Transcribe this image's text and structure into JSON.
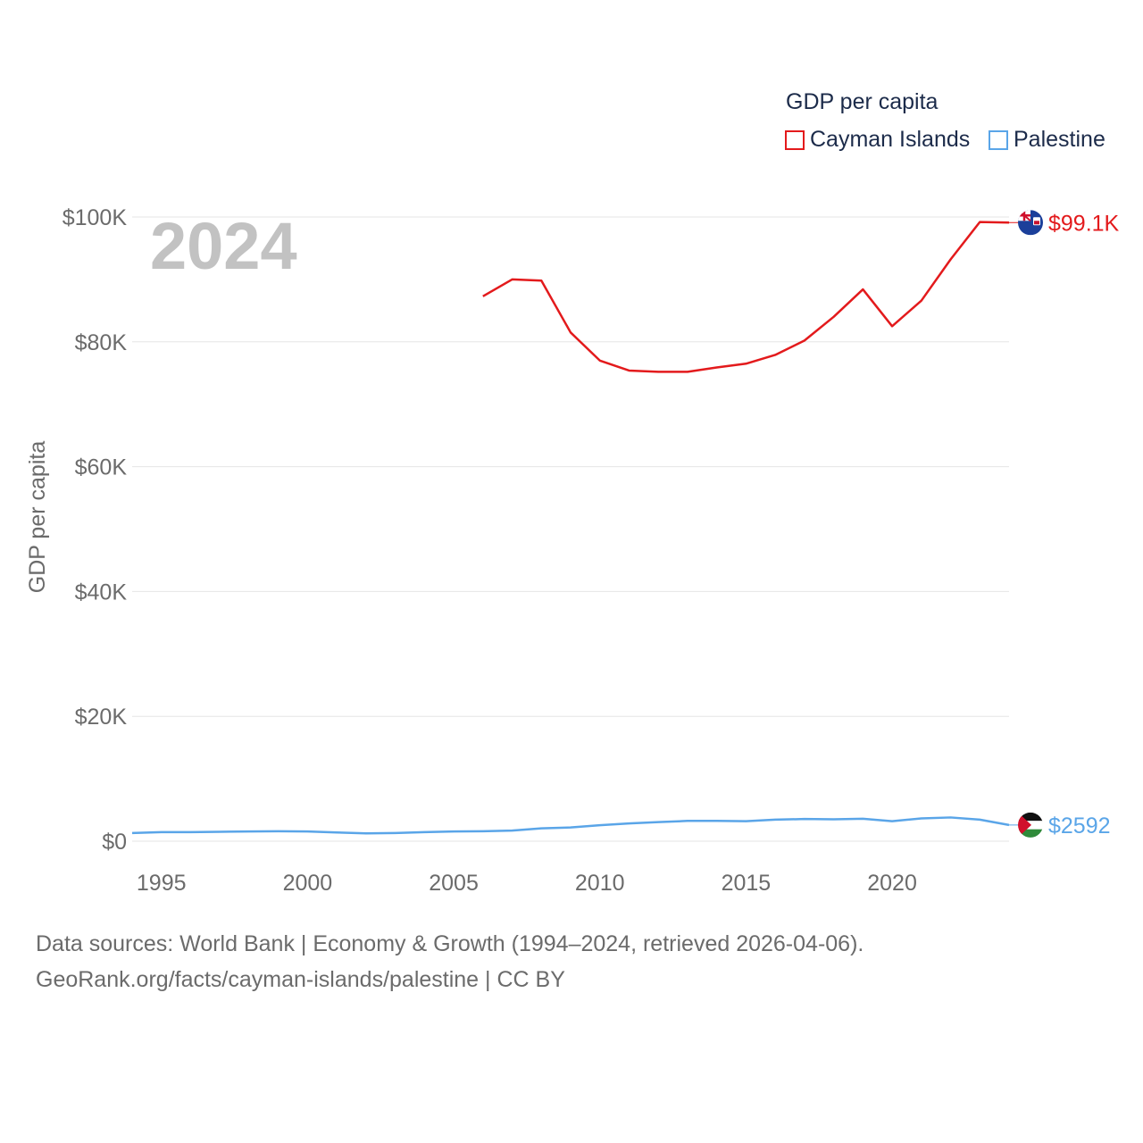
{
  "legend": {
    "title": "GDP per capita",
    "items": [
      {
        "label": "Cayman Islands",
        "color": "#e31a1c"
      },
      {
        "label": "Palestine",
        "color": "#5aa5e8"
      }
    ]
  },
  "current_year": "2024",
  "footer": {
    "line1": "Data sources: World Bank | Economy & Growth (1994–2024, retrieved 2026-04-06).",
    "line2": "GeoRank.org/facts/cayman-islands/palestine | CC BY"
  },
  "chart_data": {
    "type": "line",
    "title": "",
    "xlabel": "",
    "ylabel": "GDP per capita",
    "xlim": [
      1994,
      2024
    ],
    "ylim": [
      0,
      100000
    ],
    "y_ticks": [
      0,
      20000,
      40000,
      60000,
      80000,
      100000
    ],
    "y_tick_labels": [
      "$0",
      "$20K",
      "$40K",
      "$60K",
      "$80K",
      "$100K"
    ],
    "x_ticks": [
      1995,
      2000,
      2005,
      2010,
      2015,
      2020
    ],
    "x_tick_labels": [
      "1995",
      "2000",
      "2005",
      "2010",
      "2015",
      "2020"
    ],
    "grid": true,
    "series": [
      {
        "name": "Cayman Islands",
        "color": "#e31a1c",
        "end_label": "$99.1K",
        "flag_icon": "cayman-islands-flag-icon",
        "x": [
          2006,
          2007,
          2008,
          2009,
          2010,
          2011,
          2012,
          2013,
          2014,
          2015,
          2016,
          2017,
          2018,
          2019,
          2020,
          2021,
          2022,
          2023,
          2024
        ],
        "values": [
          87300,
          90000,
          89800,
          81500,
          77000,
          75400,
          75200,
          75200,
          75900,
          76500,
          77900,
          80200,
          84000,
          88400,
          82500,
          86600,
          93200,
          99200,
          99100
        ]
      },
      {
        "name": "Palestine",
        "color": "#5aa5e8",
        "end_label": "$2592",
        "flag_icon": "palestine-flag-icon",
        "x": [
          1994,
          1995,
          1996,
          1997,
          1998,
          1999,
          2000,
          2001,
          2002,
          2003,
          2004,
          2005,
          2006,
          2007,
          2008,
          2009,
          2010,
          2011,
          2012,
          2013,
          2014,
          2015,
          2016,
          2017,
          2018,
          2019,
          2020,
          2021,
          2022,
          2023,
          2024
        ],
        "values": [
          1300,
          1450,
          1450,
          1500,
          1550,
          1600,
          1550,
          1400,
          1250,
          1300,
          1450,
          1550,
          1600,
          1700,
          2050,
          2200,
          2550,
          2850,
          3050,
          3250,
          3250,
          3200,
          3450,
          3550,
          3500,
          3600,
          3200,
          3650,
          3800,
          3450,
          2592
        ]
      }
    ]
  }
}
